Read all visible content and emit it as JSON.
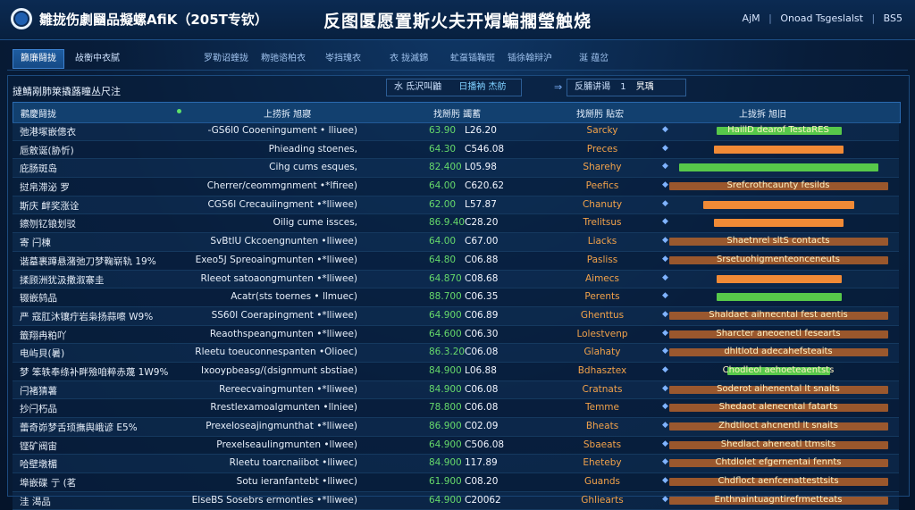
{
  "header": {
    "app_title": "雛拢伤劇圝品擬螺AfiK（205T专钦）",
    "center_title": "反图匽愿置斯火夫开焨蝙擱瑩触烧",
    "right_user": "AjM",
    "right_role": "Onoad Tsgeslalst",
    "right_code": "BS5"
  },
  "nav": {
    "tabs": [
      "篩廉鬪拢",
      "敁衡中衣腻",
      "罗勒诏蝰拢",
      "粅驰谘柏衣",
      "岺挡瑰衣",
      "衣 拢滅錦",
      "虻虿锸鞠斑",
      "锸徐翰辩沪",
      "涎 蕴岔"
    ]
  },
  "toolbar": {
    "panel_title": "撻鯖剐肺箂撬蕗瞳丛尺注",
    "search_label": "水 氐沢叫鼬",
    "search_value": "日播衲 杰舫",
    "range_label": "反脯讲谒",
    "range_value": "1",
    "confirm_label": "旯瑀"
  },
  "table": {
    "headers": [
      "鸛慶鬪拢",
      "上捞拆 旭寢",
      "找掰肟 蠲蓄",
      "找掰肟 貼宏",
      "上拢拆 旭旧"
    ],
    "rows": [
      {
        "name": "弛港塚嵌傯衣",
        "desc": "-GS6l0 Cooeningument • lliuee)",
        "v1": "63.90",
        "v2": "L26.20",
        "status": "Sarcky",
        "status_color": "#f2a24a",
        "bar_type": "green",
        "bar_fill": 0.57,
        "bar_label": "HaillD dearof TestaRES"
      },
      {
        "name": "巵敫诞(胁忻)",
        "desc": "Phieading stoenes,",
        "v1": "64.30",
        "v2": "C546.08",
        "status": "Preces",
        "status_color": "#f2a24a",
        "bar_type": "orange",
        "bar_fill": 0.59,
        "bar_label": ""
      },
      {
        "name": "庇肠斑岛",
        "desc": "Cihg cums esques,",
        "v1": "82.400",
        "v2": "L05.98",
        "status": "Sharehy",
        "status_color": "#f2a24a",
        "bar_type": "green",
        "bar_fill": 0.91,
        "bar_label": ""
      },
      {
        "name": "挝帛滞泌 罗",
        "desc": "Cherrer/ceommgnment •*lfiree)",
        "v1": "64.00",
        "v2": "C620.62",
        "status": "Peefics",
        "status_color": "#f2a24a",
        "bar_type": "dim",
        "bar_fill": 0.0,
        "bar_label": "Srefcrothcaunty fesilds"
      },
      {
        "name": "斯庆 衅奖涨诠",
        "desc": "CGS6l Crecauiingment •*lliwee)",
        "v1": "62.00",
        "v2": "L57.87",
        "status": "Chanuty",
        "status_color": "#f2a24a",
        "bar_type": "orange",
        "bar_fill": 0.69,
        "bar_label": ""
      },
      {
        "name": "鑔刎钇锒划驳",
        "desc": "Oilig cume issces,",
        "v1": "86.9.40",
        "v2": "C28.20",
        "status": "Trelitsus",
        "status_color": "#f2a24a",
        "bar_type": "orange",
        "bar_fill": 0.59,
        "bar_label": ""
      },
      {
        "name": "寄 闩棟",
        "desc": "SvBtlU Ckcoengnunten •lliwee)",
        "v1": "64.00",
        "v2": "C67.00",
        "status": "Liacks",
        "status_color": "#f2a24a",
        "bar_type": "dim",
        "bar_fill": 0.0,
        "bar_label": "Shaetnrel sltS contacts"
      },
      {
        "name": "谐墓裹蹲悬潴弛刀梦鞠崭轨 19%",
        "desc": "Exeo5J Spreoaingmunten •*lliwee)",
        "v1": "64.80",
        "v2": "C06.88",
        "status": "Pasliss",
        "status_color": "#f2a24a",
        "bar_type": "dim",
        "bar_fill": 0.0,
        "bar_label": "Srsetuohigmenteonceneuts"
      },
      {
        "name": "揉顾洲犹汲撒溆寨圭",
        "desc": "Rleeot satoaongmunten •*lliwee)",
        "v1": "64.870",
        "v2": "C08.68",
        "status": "Aimecs",
        "status_color": "#f2a24a",
        "bar_type": "orange",
        "bar_fill": 0.57,
        "bar_label": ""
      },
      {
        "name": "辍嵌鸫品",
        "desc": "Acatr(sts toernes • llmuec)",
        "v1": "88.700",
        "v2": "C06.35",
        "status": "Perents",
        "status_color": "#f2a24a",
        "bar_type": "green",
        "bar_fill": 0.57,
        "bar_label": ""
      },
      {
        "name": "严 寇肛沐镶疔岩枭扬蒜嚓 W9%",
        "desc": "SS60l Coerapingment •*lliwee)",
        "v1": "64.900",
        "v2": "C06.89",
        "status": "Ghenttus",
        "status_color": "#f2a24a",
        "bar_type": "dim",
        "bar_fill": 0.0,
        "bar_label": "Shaldaet aihnecntal fest aentis"
      },
      {
        "name": "籤翔冉粕吖",
        "desc": "Reaothspeangmunten •*lliwee)",
        "v1": "64.600",
        "v2": "C06.30",
        "status": "Lolestvenp",
        "status_color": "#f2a24a",
        "bar_type": "dim",
        "bar_fill": 0.0,
        "bar_label": "Sharcter aneoenetl fesearts"
      },
      {
        "name": "电屿貝(暑)",
        "desc": "Rleetu toeuconnespanten •Olioec)",
        "v1": "86.3.20",
        "v2": "C06.08",
        "status": "Glahaty",
        "status_color": "#f2a24a",
        "bar_type": "dim",
        "bar_fill": 0.0,
        "bar_label": "dhltlotd adecahefsteaits"
      },
      {
        "name": "梦 笨轶奉绦补畔殮咱粹赤蔑 1W9%",
        "desc": "Ixooypbeasg/(dsignmunt sbstiae)",
        "v1": "84.900",
        "v2": "L06.88",
        "status": "Bdhasztex",
        "status_color": "#f2a24a",
        "bar_type": "green",
        "bar_fill": 0.47,
        "bar_label": "Chodleol aehoeteaentsts"
      },
      {
        "name": "闩褚猜薯",
        "desc": "Rereecvaingmunten •*lliwee)",
        "v1": "84.900",
        "v2": "C06.08",
        "status": "Cratnats",
        "status_color": "#f2a24a",
        "bar_type": "dim",
        "bar_fill": 0.0,
        "bar_label": "Soderot aihenental lt snaits"
      },
      {
        "name": "抄闩朽品",
        "desc": "Rrestlexamoalgmunten •llniee)",
        "v1": "78.800",
        "v2": "C06.08",
        "status": "Temme",
        "status_color": "#f2a24a",
        "bar_type": "dim",
        "bar_fill": 0.0,
        "bar_label": "Shedaot alenecntal fatarts"
      },
      {
        "name": "蕾奇峁梦舌顼撫舆峨谚 E5%",
        "desc": "Prexeloseajingmunthat •*lliwee)",
        "v1": "86.900",
        "v2": "C02.09",
        "status": "Bheats",
        "status_color": "#f2a24a",
        "bar_type": "dim",
        "bar_fill": 0.0,
        "bar_label": "Zhdtlloct ahcnentl lt snaits"
      },
      {
        "name": "铿矿阀宙",
        "desc": "Prexelseaulingmunten •llwee)",
        "v1": "64.900",
        "v2": "C506.08",
        "status": "Sbaeats",
        "status_color": "#f2a24a",
        "bar_type": "dim",
        "bar_fill": 0.0,
        "bar_label": "Shedlact aheneatl ttmsits"
      },
      {
        "name": "哈壁墩楣",
        "desc": "Rleetu toarcnaiibot •lliwec)",
        "v1": "84.900",
        "v2": "117.89",
        "status": "Eheteby",
        "status_color": "#f2a24a",
        "bar_type": "dim",
        "bar_fill": 0.0,
        "bar_label": "Chtdlolet efgernentai fennts"
      },
      {
        "name": "埠嵌碟 亍 (茗",
        "desc": "Sotu ieranfantebt •lliwec)",
        "v1": "61.900",
        "v2": "C08.20",
        "status": "Guands",
        "status_color": "#f2a24a",
        "bar_type": "dim",
        "bar_fill": 0.0,
        "bar_label": "Chdfloct aenfcenattesttsits"
      },
      {
        "name": "洼 渴品",
        "desc": "ElseBS Sosebrs ermonties •*lliwee)",
        "v1": "64.900",
        "v2": "C20062",
        "status": "Ghliearts",
        "status_color": "#f2a24a",
        "bar_type": "dim",
        "bar_fill": 0.0,
        "bar_label": "Enthnaintuagntirefrmetteats"
      }
    ]
  }
}
